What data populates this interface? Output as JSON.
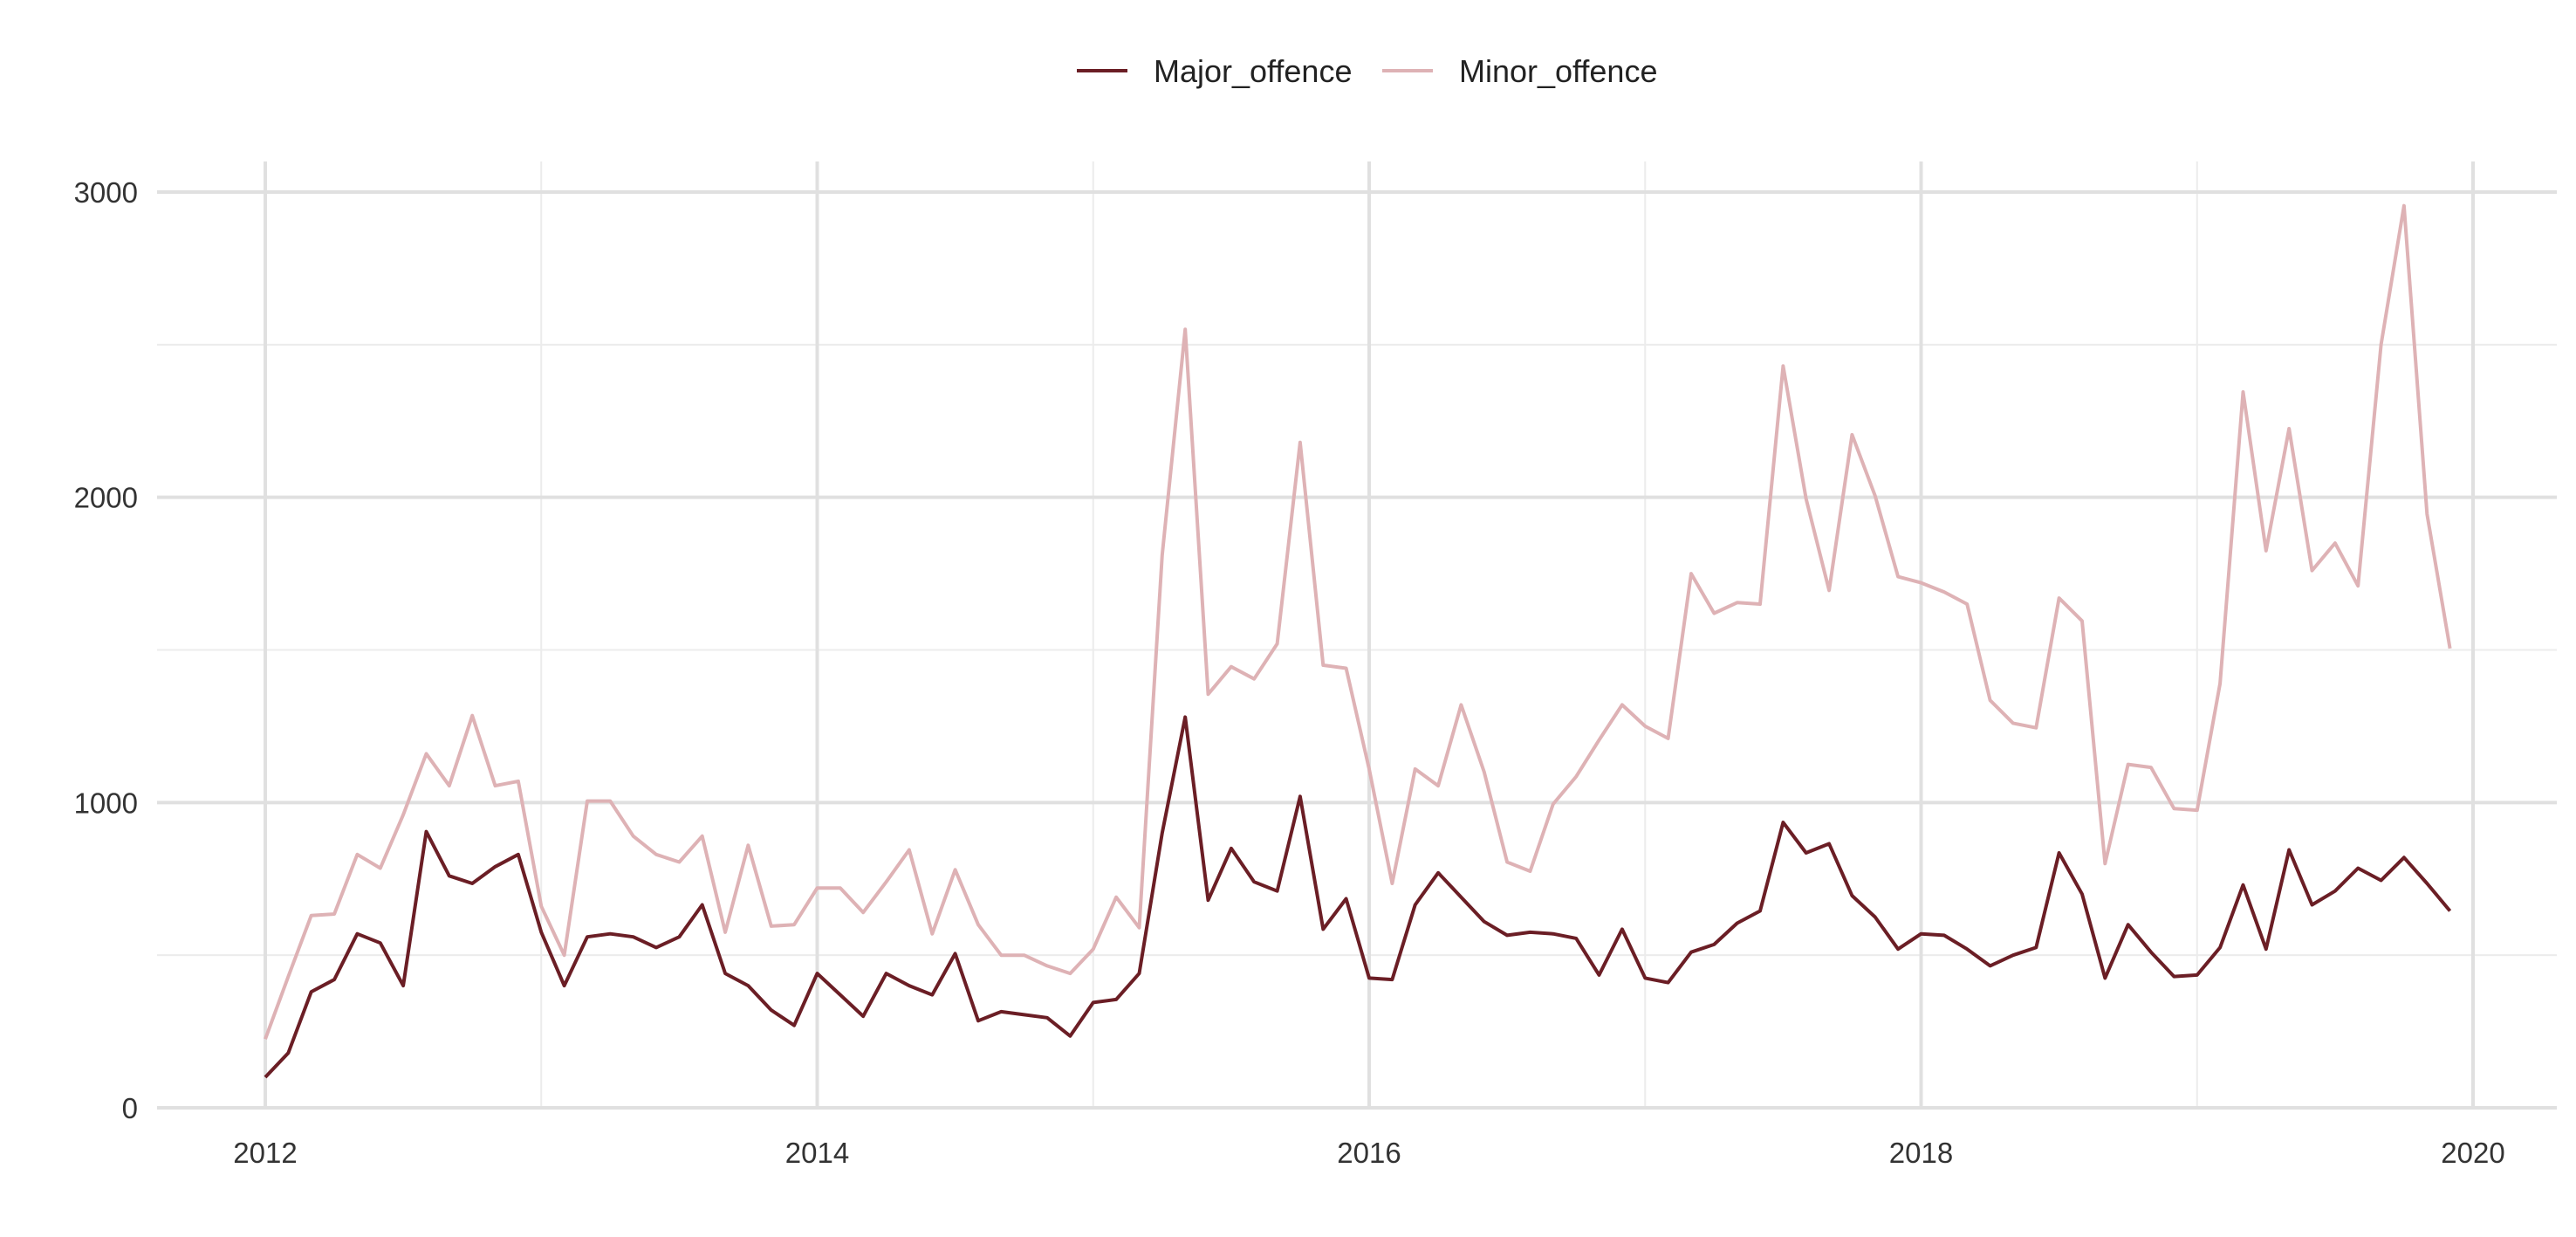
{
  "chart_data": {
    "type": "line",
    "title": "",
    "xlabel": "",
    "ylabel": "",
    "xlim": [
      2011.6,
      2020.3
    ],
    "ylim": [
      0,
      3000
    ],
    "x_ticks": [
      2012,
      2014,
      2016,
      2018,
      2020
    ],
    "x_tick_labels": [
      "2012",
      "2014",
      "2016",
      "2018",
      "2020"
    ],
    "y_ticks": [
      0,
      1000,
      2000,
      3000
    ],
    "y_tick_labels": [
      "0",
      "1000",
      "2000",
      "3000"
    ],
    "y_minor_ticks": [
      500,
      1500,
      2500
    ],
    "x_minor_ticks": [
      2013,
      2015,
      2017,
      2019
    ],
    "grid": true,
    "legend_position": "top",
    "x_start": 2012,
    "x_step_months": 1,
    "series": [
      {
        "name": "Major_offence",
        "color": "#6b1e25",
        "values": [
          100,
          180,
          380,
          420,
          570,
          540,
          400,
          905,
          760,
          735,
          790,
          830,
          575,
          400,
          560,
          570,
          560,
          525,
          560,
          665,
          440,
          400,
          320,
          270,
          440,
          370,
          300,
          440,
          400,
          370,
          505,
          285,
          315,
          305,
          295,
          235,
          345,
          355,
          440,
          900,
          1280,
          680,
          850,
          740,
          710,
          1020,
          585,
          685,
          425,
          420,
          665,
          770,
          690,
          610,
          565,
          575,
          570,
          555,
          435,
          585,
          425,
          410,
          510,
          535,
          605,
          645,
          935,
          835,
          865,
          695,
          625,
          520,
          570,
          565,
          520,
          465,
          500,
          525,
          835,
          700,
          425,
          600,
          510,
          430,
          435,
          525,
          730,
          520,
          845,
          665,
          710,
          785,
          745,
          820,
          735,
          645
        ]
      },
      {
        "name": "Minor_offence",
        "color": "#deb2b5",
        "values": [
          225,
          430,
          630,
          635,
          830,
          785,
          960,
          1160,
          1055,
          1285,
          1055,
          1070,
          660,
          500,
          1005,
          1005,
          890,
          830,
          805,
          890,
          575,
          860,
          595,
          600,
          720,
          720,
          640,
          740,
          845,
          570,
          780,
          600,
          500,
          500,
          465,
          440,
          520,
          690,
          590,
          1810,
          2550,
          1355,
          1445,
          1405,
          1520,
          2180,
          1450,
          1440,
          1110,
          735,
          1110,
          1055,
          1320,
          1100,
          805,
          775,
          995,
          1085,
          1205,
          1320,
          1250,
          1210,
          1750,
          1620,
          1655,
          1650,
          2430,
          1995,
          1695,
          2205,
          2005,
          1740,
          1720,
          1690,
          1650,
          1335,
          1260,
          1245,
          1670,
          1595,
          800,
          1125,
          1115,
          980,
          975,
          1390,
          2345,
          1825,
          2225,
          1760,
          1850,
          1710,
          2500,
          2955,
          1945,
          1505
        ]
      }
    ]
  }
}
